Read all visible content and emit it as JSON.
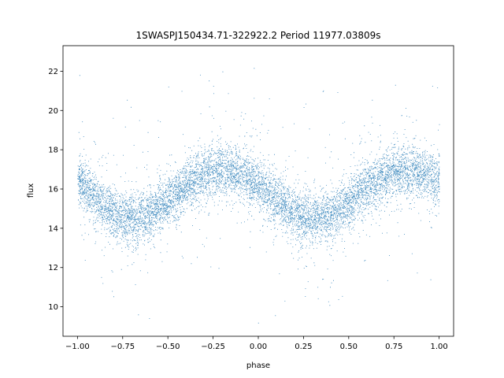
{
  "chart_data": {
    "type": "scatter",
    "title": "1SWASPJ150434.71-322922.2 Period 11977.03809s",
    "xlabel": "phase",
    "ylabel": "flux",
    "xlim": [
      -1.08,
      1.08
    ],
    "ylim": [
      8.5,
      23.3
    ],
    "x_ticks": [
      -1.0,
      -0.75,
      -0.5,
      -0.25,
      0.0,
      0.25,
      0.5,
      0.75,
      1.0
    ],
    "x_tick_labels": [
      "−1.00",
      "−0.75",
      "−0.50",
      "−0.25",
      "0.00",
      "0.25",
      "0.50",
      "0.75",
      "1.00"
    ],
    "y_ticks": [
      10,
      12,
      14,
      16,
      18,
      20,
      22
    ],
    "y_tick_labels": [
      "10",
      "12",
      "14",
      "16",
      "18",
      "20",
      "22"
    ],
    "grid": false,
    "point_color": "#1f77b4",
    "series": [
      {
        "x": [
          -1.0,
          -0.875,
          -0.75,
          -0.625,
          -0.5,
          -0.375,
          -0.25,
          -0.125,
          0.0,
          0.125,
          0.25,
          0.375,
          0.5,
          0.625,
          0.75,
          0.875,
          1.0
        ],
        "y": [
          16.4,
          15.3,
          14.6,
          14.7,
          15.4,
          16.3,
          16.9,
          16.8,
          16.2,
          15.3,
          14.6,
          14.6,
          15.3,
          16.3,
          16.9,
          16.9,
          16.4
        ]
      }
    ]
  }
}
